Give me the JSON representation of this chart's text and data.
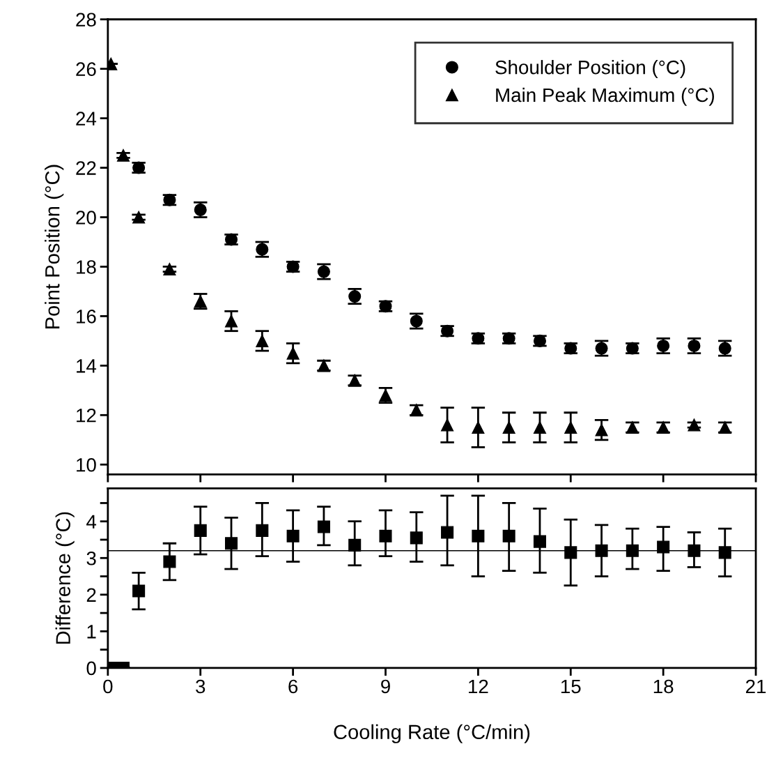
{
  "chart_data": [
    {
      "type": "scatter",
      "ylabel": "Point Position (°C)",
      "xlim": [
        0,
        21
      ],
      "xticks": [
        {
          "value": 0,
          "label": null
        },
        {
          "value": 3,
          "label": null
        },
        {
          "value": 6,
          "label": null
        },
        {
          "value": 9,
          "label": null
        },
        {
          "value": 12,
          "label": null
        },
        {
          "value": 15,
          "label": null
        },
        {
          "value": 18,
          "label": null
        },
        {
          "value": 21,
          "label": null
        }
      ],
      "ylim": [
        9.6,
        28
      ],
      "yticks": [
        10,
        12,
        14,
        16,
        18,
        20,
        22,
        24,
        26,
        28
      ],
      "tick_labels": "y",
      "grid": false,
      "legend": "top right",
      "series": [
        {
          "name": "Shoulder Position (°C)",
          "color": "#000000",
          "marker": "circle",
          "x": [
            1,
            2,
            3,
            4,
            5,
            6,
            7,
            8,
            9,
            10,
            11,
            12,
            13,
            14,
            15,
            16,
            17,
            18,
            19,
            20
          ],
          "values": [
            22.0,
            20.7,
            20.3,
            19.1,
            18.7,
            18.0,
            17.8,
            16.8,
            16.4,
            15.8,
            15.4,
            15.1,
            15.1,
            15.0,
            14.7,
            14.7,
            14.7,
            14.8,
            14.8,
            14.7
          ],
          "errors": [
            0.2,
            0.2,
            0.3,
            0.2,
            0.3,
            0.2,
            0.3,
            0.3,
            0.2,
            0.3,
            0.2,
            0.2,
            0.2,
            0.2,
            0.2,
            0.3,
            0.2,
            0.3,
            0.3,
            0.3
          ]
        },
        {
          "name": "Main Peak Maximum (°C)",
          "color": "#000000",
          "marker": "triangle",
          "x": [
            0.1,
            0.5,
            1,
            2,
            3,
            4,
            5,
            6,
            7,
            8,
            9,
            10,
            11,
            12,
            13,
            14,
            15,
            16,
            17,
            18,
            19,
            20
          ],
          "values": [
            26.2,
            22.5,
            20.0,
            17.9,
            16.6,
            15.8,
            15.0,
            14.5,
            14.0,
            13.4,
            12.8,
            12.2,
            11.6,
            11.5,
            11.5,
            11.5,
            11.5,
            11.4,
            11.5,
            11.5,
            11.6,
            11.5
          ],
          "errors": [
            null,
            0.1,
            0.1,
            0.1,
            0.3,
            0.4,
            0.4,
            0.4,
            0.2,
            0.2,
            0.3,
            0.2,
            0.7,
            0.8,
            0.6,
            0.6,
            0.6,
            0.4,
            0.2,
            0.2,
            0.1,
            0.2
          ]
        }
      ]
    },
    {
      "type": "scatter",
      "xlabel": "Cooling Rate (°C/min)",
      "ylabel": "Difference (°C)",
      "xlim": [
        0,
        21
      ],
      "xticks": [
        0,
        3,
        6,
        9,
        12,
        15,
        18,
        21
      ],
      "ylim": [
        0,
        4.9
      ],
      "yticks": [
        0,
        {
          "value": 0.5,
          "label": null
        },
        1,
        {
          "value": 1.5,
          "label": null
        },
        2,
        {
          "value": 2.5,
          "label": null
        },
        3,
        {
          "value": 3.5,
          "label": null
        },
        4,
        {
          "value": 4.5,
          "label": null
        }
      ],
      "grid": false,
      "legend": false,
      "ref_lines": [
        {
          "axis": "y",
          "value": 3.2,
          "color": "#000000",
          "line_style": "solid"
        }
      ],
      "series": [
        {
          "color": "#000000",
          "marker": "square",
          "x": [
            0.1,
            0.5,
            1,
            2,
            3,
            4,
            5,
            6,
            7,
            8,
            9,
            10,
            11,
            12,
            13,
            14,
            15,
            16,
            17,
            18,
            19,
            20
          ],
          "values": [
            0,
            0,
            2.1,
            2.9,
            3.75,
            3.4,
            3.75,
            3.6,
            3.85,
            3.35,
            3.6,
            3.55,
            3.7,
            3.6,
            3.6,
            3.45,
            3.15,
            3.2,
            3.2,
            3.3,
            3.2,
            3.15
          ],
          "errors": [
            null,
            null,
            [
              1.6,
              2.6
            ],
            [
              2.4,
              3.4
            ],
            [
              3.1,
              4.4
            ],
            [
              2.7,
              4.1
            ],
            [
              3.05,
              4.5
            ],
            [
              2.9,
              4.3
            ],
            [
              3.35,
              4.4
            ],
            [
              2.8,
              4.0
            ],
            [
              3.05,
              4.3
            ],
            [
              2.9,
              4.25
            ],
            [
              2.8,
              4.7
            ],
            [
              2.5,
              4.7
            ],
            [
              2.65,
              4.5
            ],
            [
              2.6,
              4.35
            ],
            [
              2.25,
              4.05
            ],
            [
              2.5,
              3.9
            ],
            [
              2.7,
              3.8
            ],
            [
              2.65,
              3.85
            ],
            [
              2.75,
              3.7
            ],
            [
              2.5,
              3.8
            ]
          ]
        }
      ]
    }
  ]
}
